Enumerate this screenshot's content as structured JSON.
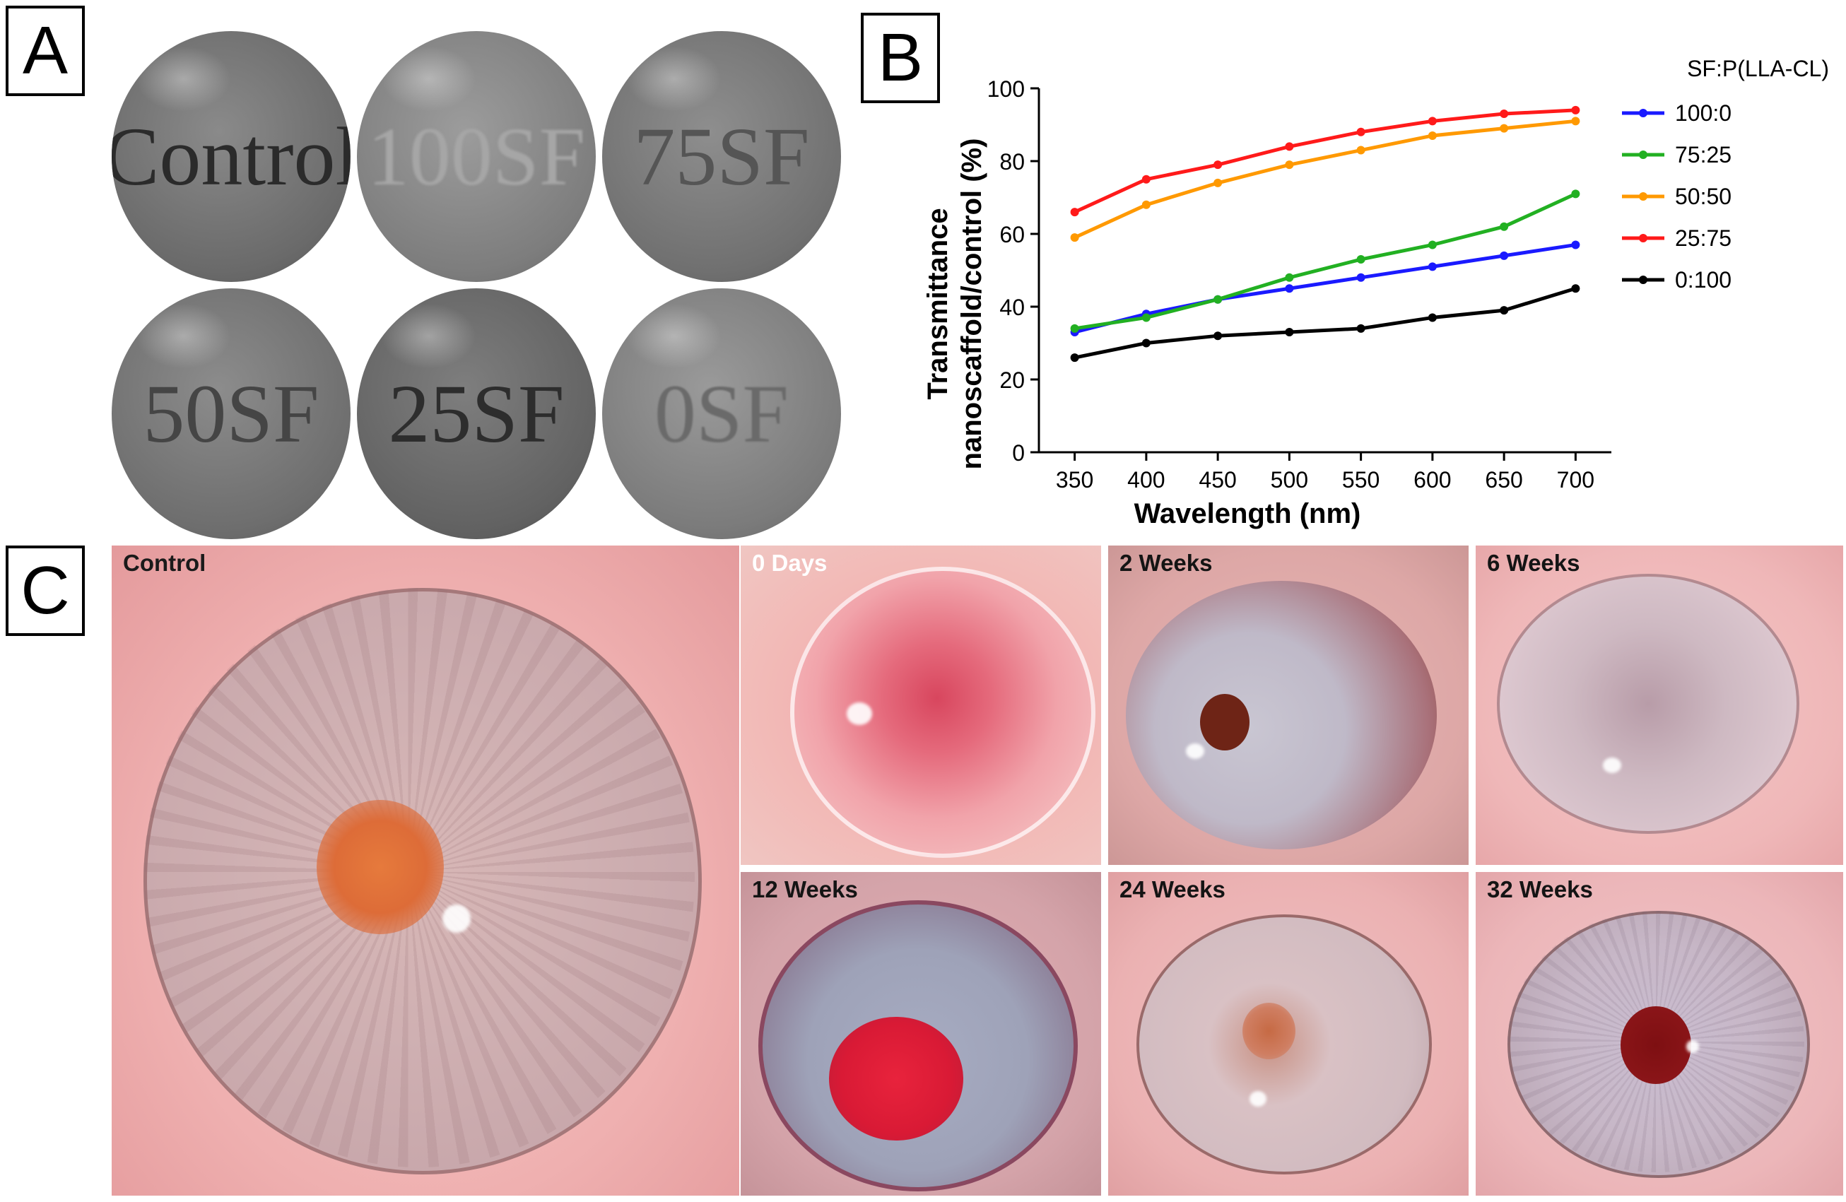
{
  "panel_a": {
    "letter": "A",
    "discs": [
      {
        "label": "Control",
        "text_color": "#2b2b2b"
      },
      {
        "label": "100SF",
        "text_color": "#9a9a9a"
      },
      {
        "label": "75SF",
        "text_color": "#5e5e5e"
      },
      {
        "label": "50SF",
        "text_color": "#4a4a4a"
      },
      {
        "label": "25SF",
        "text_color": "#2f2f2f"
      },
      {
        "label": "0SF",
        "text_color": "#6e6e6e"
      }
    ]
  },
  "panel_b": {
    "letter": "B",
    "legend_title": "SF:P(LLA-CL)"
  },
  "chart_data": {
    "type": "line",
    "title": "",
    "xlabel": "Wavelength (nm)",
    "ylabel_line1": "Transmittance",
    "ylabel_line2": "nanoscaffold/control (%)",
    "x": [
      350,
      400,
      450,
      500,
      550,
      600,
      650,
      700
    ],
    "xlim": [
      325,
      725
    ],
    "ylim": [
      0,
      100
    ],
    "yticks": [
      0,
      20,
      40,
      60,
      80,
      100
    ],
    "legend_position": "right",
    "grid": false,
    "series": [
      {
        "name": "100:0",
        "color": "#1a1aff",
        "values": [
          33,
          38,
          42,
          45,
          48,
          51,
          54,
          57
        ]
      },
      {
        "name": "75:25",
        "color": "#22b022",
        "values": [
          34,
          37,
          42,
          48,
          53,
          57,
          62,
          71
        ]
      },
      {
        "name": "50:50",
        "color": "#ff9900",
        "values": [
          59,
          68,
          74,
          79,
          83,
          87,
          89,
          91
        ]
      },
      {
        "name": "25:75",
        "color": "#ff1a1a",
        "values": [
          66,
          75,
          79,
          84,
          88,
          91,
          93,
          94
        ]
      },
      {
        "name": "0:100",
        "color": "#000000",
        "values": [
          26,
          30,
          32,
          33,
          34,
          37,
          39,
          45
        ]
      }
    ]
  },
  "panel_c": {
    "letter": "C",
    "photos": [
      {
        "label": "Control"
      },
      {
        "label": "0 Days"
      },
      {
        "label": "2 Weeks"
      },
      {
        "label": "6 Weeks"
      },
      {
        "label": "12 Weeks"
      },
      {
        "label": "24 Weeks"
      },
      {
        "label": "32 Weeks"
      }
    ]
  }
}
